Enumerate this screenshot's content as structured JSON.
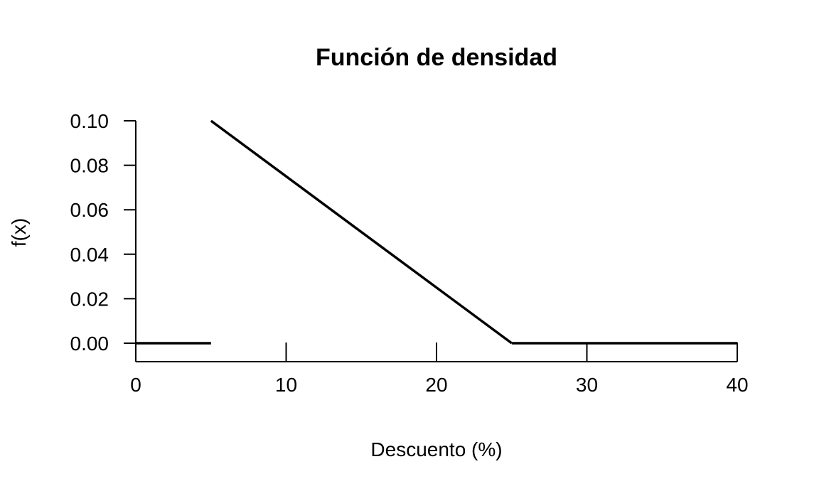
{
  "chart_data": {
    "type": "line",
    "title": "Función de densidad",
    "xlabel": "Descuento (%)",
    "ylabel": "f(x)",
    "xlim": [
      0,
      40
    ],
    "ylim": [
      0,
      0.1
    ],
    "x_ticks": [
      0,
      10,
      20,
      30,
      40
    ],
    "x_tick_labels": [
      "0",
      "10",
      "20",
      "30",
      "40"
    ],
    "y_ticks": [
      0,
      0.02,
      0.04,
      0.06,
      0.08,
      0.1
    ],
    "y_tick_labels": [
      "0.00",
      "0.02",
      "0.04",
      "0.06",
      "0.08",
      "0.10"
    ],
    "grid": false,
    "series": [
      {
        "segment": "left-zero",
        "x": [
          0,
          5
        ],
        "y": [
          0,
          0
        ]
      },
      {
        "segment": "density",
        "x": [
          5,
          25
        ],
        "y": [
          0.1,
          0
        ]
      },
      {
        "segment": "right-zero",
        "x": [
          25,
          40
        ],
        "y": [
          0,
          0
        ]
      }
    ],
    "colors": {
      "line": "#000000",
      "background": "#ffffff"
    }
  }
}
